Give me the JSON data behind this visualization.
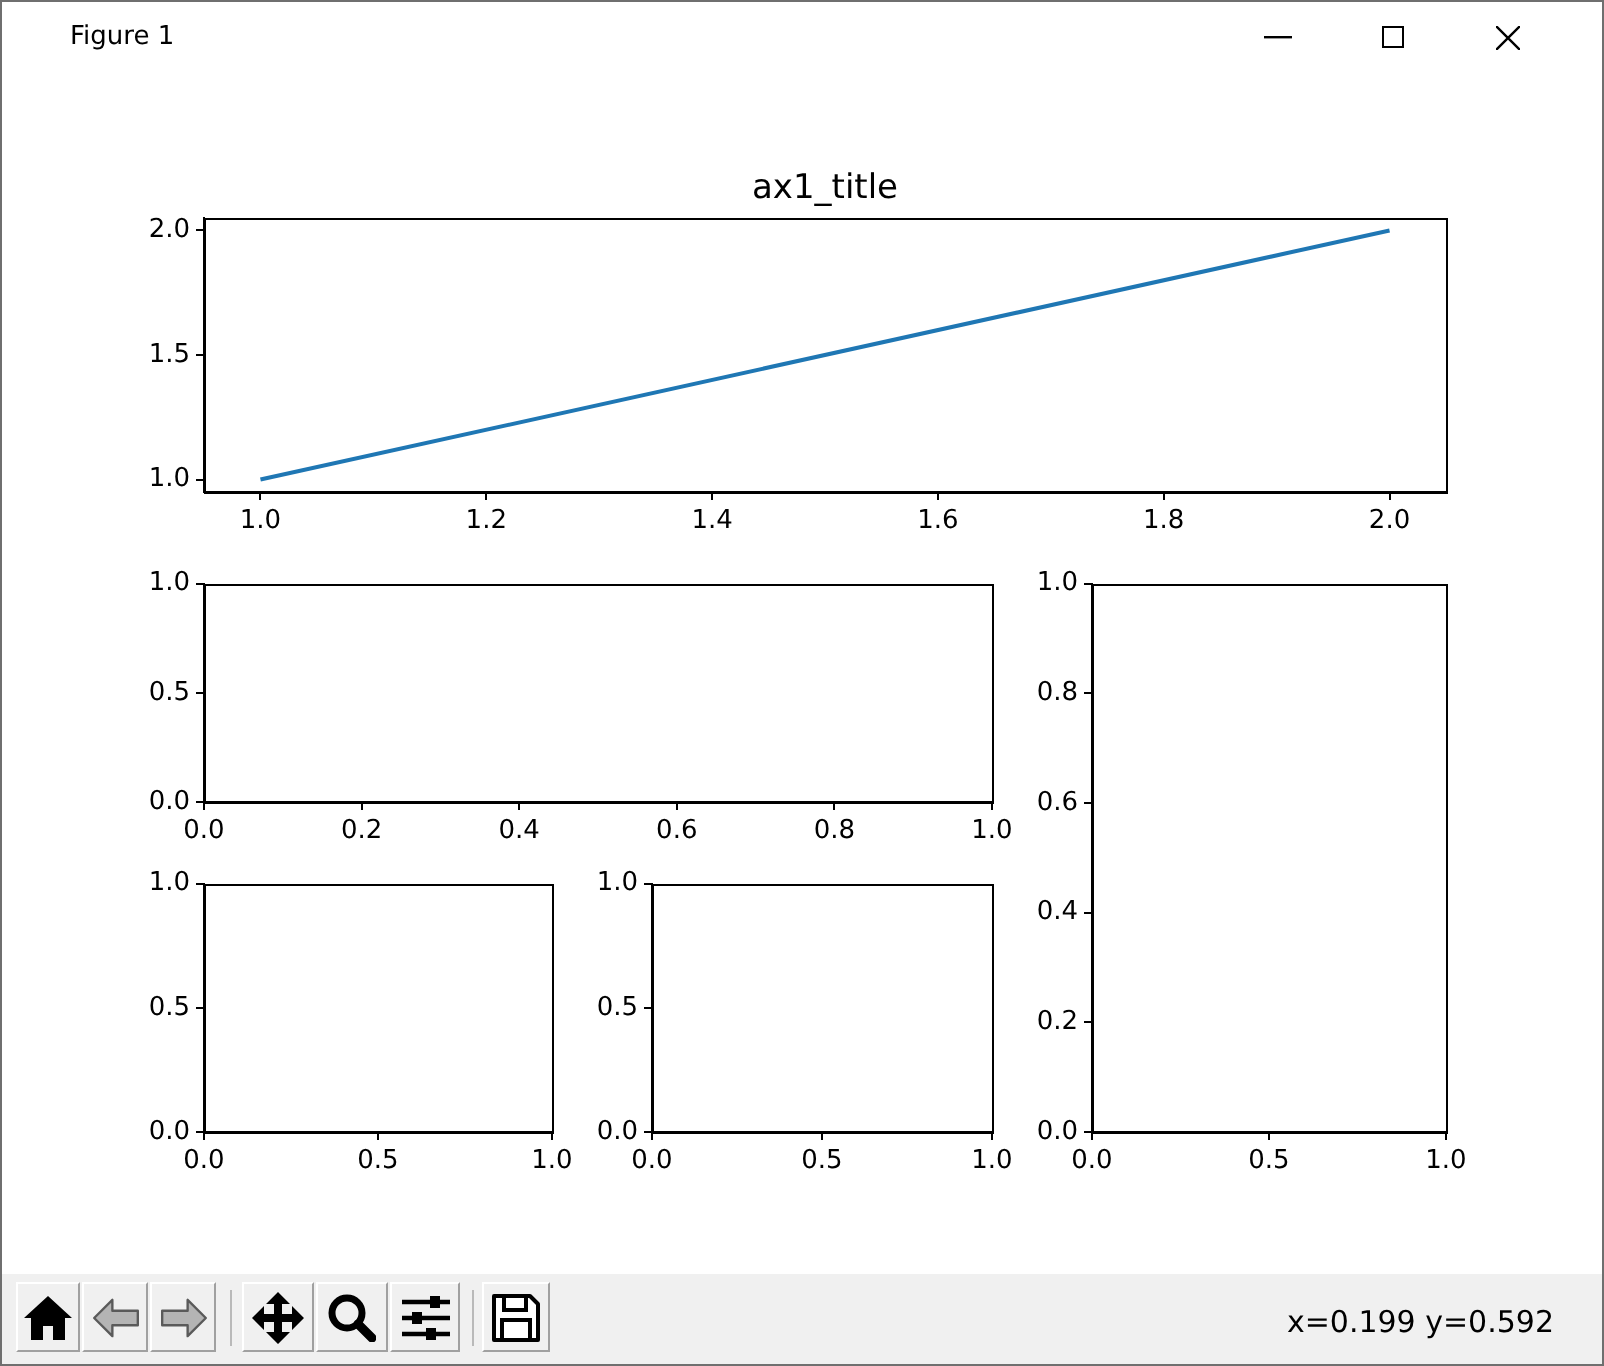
{
  "chart_data": [
    {
      "type": "line",
      "title": "ax1_title",
      "x": [
        1,
        2
      ],
      "series": [
        {
          "color": "#1f77b4",
          "values": [
            1,
            2
          ]
        }
      ],
      "xlim": [
        0.95,
        2.05
      ],
      "ylim": [
        0.95,
        2.05
      ],
      "xticks": [
        {
          "value": 1,
          "label": "1.0"
        },
        1.2,
        1.4,
        1.6,
        1.8,
        {
          "value": 2,
          "label": "2.0"
        }
      ],
      "yticks": [
        {
          "value": 1,
          "label": "1.0"
        },
        1.5,
        {
          "value": 2,
          "label": "2.0"
        }
      ],
      "annotations": [
        "Figure 1",
        "x=0.199 y=0.592"
      ]
    },
    {
      "type": "line",
      "xlim": [
        0,
        1
      ],
      "ylim": [
        0,
        1
      ],
      "xticks": [
        {
          "value": 0,
          "label": "0.0"
        },
        0.2,
        0.4,
        0.6,
        0.8,
        {
          "value": 1,
          "label": "1.0"
        }
      ],
      "yticks": [
        {
          "value": 0,
          "label": "0.0"
        },
        0.5,
        {
          "value": 1,
          "label": "1.0"
        }
      ]
    },
    {
      "type": "line",
      "xlim": [
        0,
        1
      ],
      "ylim": [
        0,
        1
      ],
      "xticks": [
        {
          "value": 0,
          "label": "0.0"
        },
        0.5,
        {
          "value": 1,
          "label": "1.0"
        }
      ],
      "yticks": [
        {
          "value": 0,
          "label": "0.0"
        },
        0.2,
        0.4,
        0.6,
        0.8,
        {
          "value": 1,
          "label": "1.0"
        }
      ]
    },
    {
      "type": "line",
      "xlim": [
        0,
        1
      ],
      "ylim": [
        0,
        1
      ],
      "xticks": [
        {
          "value": 0,
          "label": "0.0"
        },
        0.5,
        {
          "value": 1,
          "label": "1.0"
        }
      ],
      "yticks": [
        {
          "value": 0,
          "label": "0.0"
        },
        0.5,
        {
          "value": 1,
          "label": "1.0"
        }
      ]
    },
    {
      "type": "line",
      "xlim": [
        0,
        1
      ],
      "ylim": [
        0,
        1
      ],
      "xticks": [
        {
          "value": 0,
          "label": "0.0"
        },
        0.5,
        {
          "value": 1,
          "label": "1.0"
        }
      ],
      "yticks": [
        {
          "value": 0,
          "label": "0.0"
        },
        0.5,
        {
          "value": 1,
          "label": "1.0"
        }
      ]
    }
  ]
}
